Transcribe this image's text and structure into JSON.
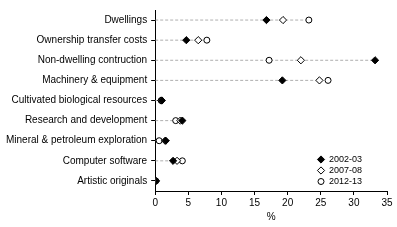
{
  "chart_data": {
    "type": "dot",
    "orientation": "horizontal",
    "categories": [
      "Dwellings",
      "Ownership transfer costs",
      "Non-dwelling contruction",
      "Machinery & equipment",
      "Cultivated biological resources",
      "Research and development",
      "Mineral & petroleum exploration",
      "Computer software",
      "Artistic originals"
    ],
    "series": [
      {
        "name": "2002-03",
        "color": "#000000",
        "marker": "diamond",
        "values": [
          16.8,
          4.7,
          33.2,
          19.2,
          1.0,
          4.1,
          1.6,
          2.7,
          0.1
        ]
      },
      {
        "name": "2007-08",
        "color": "#000000",
        "marker": "open_diamond",
        "values": [
          19.3,
          6.5,
          22.0,
          24.8,
          0.9,
          3.8,
          1.5,
          3.3,
          0.1
        ]
      },
      {
        "name": "2012-13",
        "color": "#000000",
        "marker": "open_circle",
        "values": [
          23.2,
          7.8,
          17.2,
          26.1,
          0.9,
          3.1,
          0.6,
          4.1,
          0.1
        ]
      }
    ],
    "x_label": "%",
    "xlim": [
      0,
      35
    ],
    "xticks": [
      0,
      5,
      10,
      15,
      20,
      25,
      30,
      35
    ],
    "grid": false,
    "legend": "lower right"
  }
}
